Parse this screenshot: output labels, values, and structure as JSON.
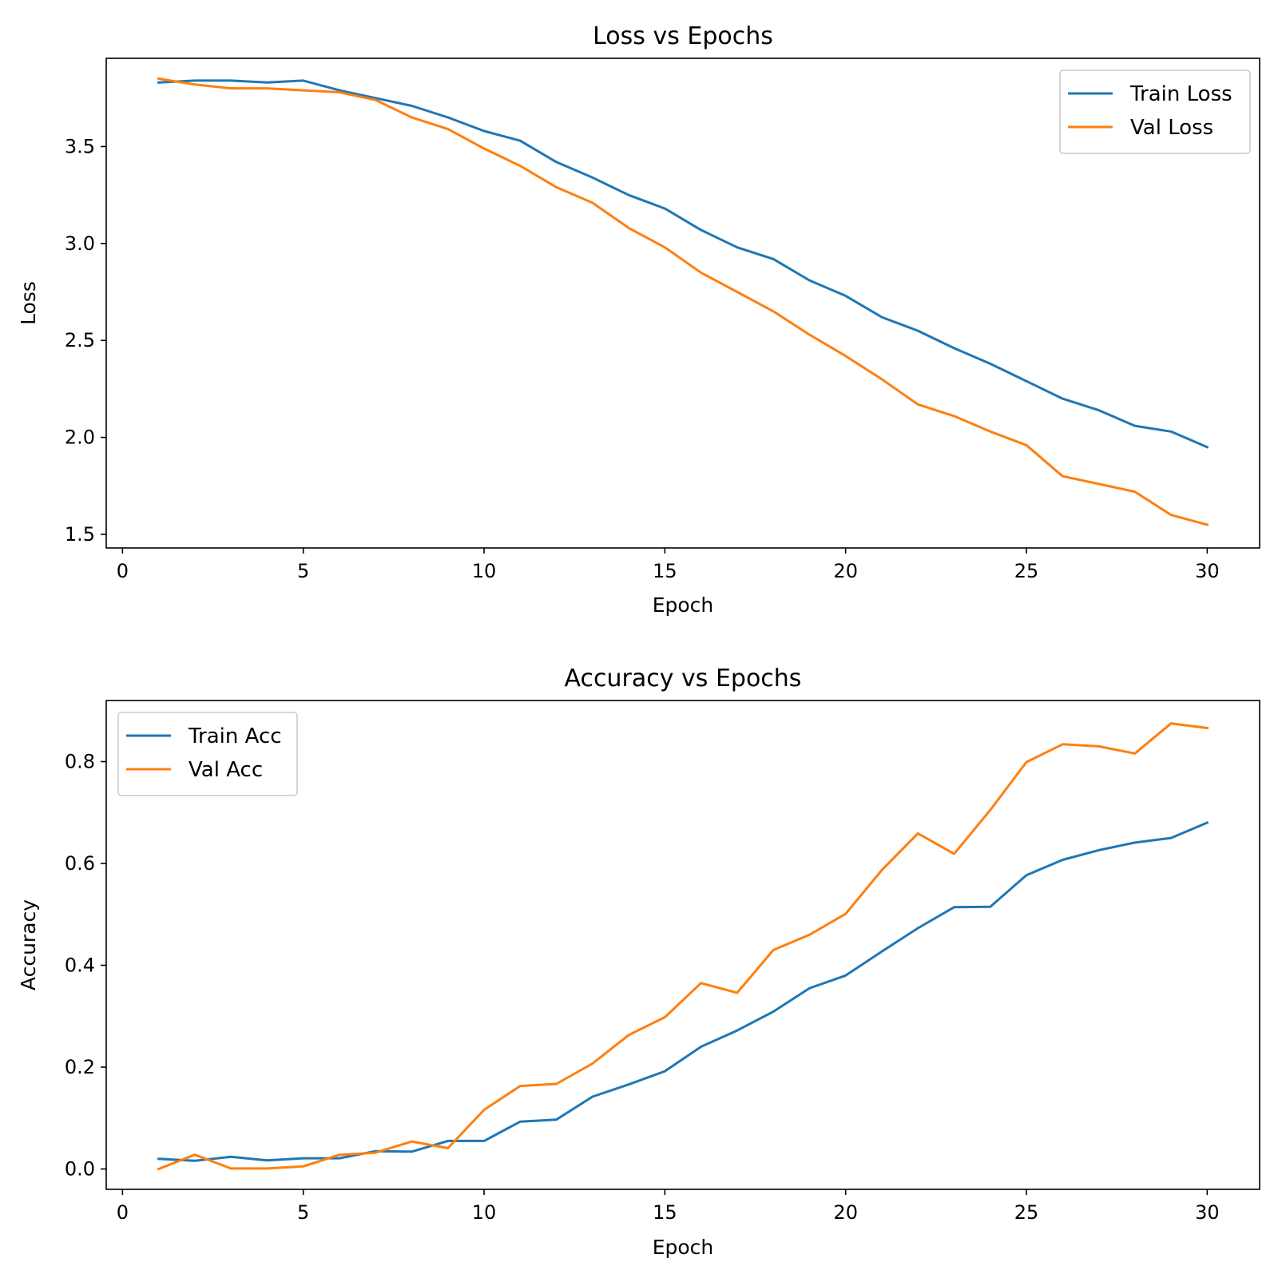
{
  "chart_data": [
    {
      "type": "line",
      "title": "Loss vs Epochs",
      "xlabel": "Epoch",
      "ylabel": "Loss",
      "xlim": [
        -0.45,
        31.45
      ],
      "ylim": [
        1.43,
        3.955
      ],
      "xticks": [
        0,
        5,
        10,
        15,
        20,
        25,
        30
      ],
      "xtick_labels": [
        "0",
        "5",
        "10",
        "15",
        "20",
        "25",
        "30"
      ],
      "yticks": [
        1.5,
        2.0,
        2.5,
        3.0,
        3.5
      ],
      "ytick_labels": [
        "1.5",
        "2.0",
        "2.5",
        "3.0",
        "3.5"
      ],
      "grid": false,
      "legend_position": "upper right",
      "x": [
        1,
        2,
        3,
        4,
        5,
        6,
        7,
        8,
        9,
        10,
        11,
        12,
        13,
        14,
        15,
        16,
        17,
        18,
        19,
        20,
        21,
        22,
        23,
        24,
        25,
        26,
        27,
        28,
        29,
        30
      ],
      "series": [
        {
          "name": "Train Loss",
          "color": "#1f77b4",
          "values": [
            3.83,
            3.84,
            3.84,
            3.83,
            3.84,
            3.79,
            3.75,
            3.71,
            3.65,
            3.58,
            3.53,
            3.42,
            3.34,
            3.25,
            3.18,
            3.07,
            2.98,
            2.92,
            2.81,
            2.73,
            2.62,
            2.55,
            2.46,
            2.38,
            2.29,
            2.2,
            2.14,
            2.06,
            2.03,
            1.95
          ]
        },
        {
          "name": "Val Loss",
          "color": "#ff7f0e",
          "values": [
            3.85,
            3.82,
            3.8,
            3.8,
            3.79,
            3.78,
            3.74,
            3.65,
            3.59,
            3.49,
            3.4,
            3.29,
            3.21,
            3.08,
            2.98,
            2.85,
            2.75,
            2.65,
            2.53,
            2.42,
            2.3,
            2.17,
            2.11,
            2.03,
            1.96,
            1.8,
            1.76,
            1.72,
            1.6,
            1.55
          ]
        }
      ]
    },
    {
      "type": "line",
      "title": "Accuracy vs Epochs",
      "xlabel": "Epoch",
      "ylabel": "Accuracy",
      "xlim": [
        -0.45,
        31.45
      ],
      "ylim": [
        -0.04,
        0.92
      ],
      "xticks": [
        0,
        5,
        10,
        15,
        20,
        25,
        30
      ],
      "xtick_labels": [
        "0",
        "5",
        "10",
        "15",
        "20",
        "25",
        "30"
      ],
      "yticks": [
        0.0,
        0.2,
        0.4,
        0.6,
        0.8
      ],
      "ytick_labels": [
        "0.0",
        "0.2",
        "0.4",
        "0.6",
        "0.8"
      ],
      "grid": false,
      "legend_position": "upper left",
      "x": [
        1,
        2,
        3,
        4,
        5,
        6,
        7,
        8,
        9,
        10,
        11,
        12,
        13,
        14,
        15,
        16,
        17,
        18,
        19,
        20,
        21,
        22,
        23,
        24,
        25,
        26,
        27,
        28,
        29,
        30
      ],
      "series": [
        {
          "name": "Train Acc",
          "color": "#1f77b4",
          "values": [
            0.02,
            0.016,
            0.024,
            0.017,
            0.021,
            0.021,
            0.035,
            0.034,
            0.055,
            0.055,
            0.093,
            0.097,
            0.142,
            0.166,
            0.192,
            0.24,
            0.272,
            0.309,
            0.355,
            0.38,
            0.427,
            0.473,
            0.514,
            0.515,
            0.577,
            0.607,
            0.626,
            0.641,
            0.65,
            0.68
          ]
        },
        {
          "name": "Val Acc",
          "color": "#ff7f0e",
          "values": [
            0.0,
            0.028,
            0.001,
            0.001,
            0.005,
            0.028,
            0.032,
            0.054,
            0.041,
            0.116,
            0.163,
            0.167,
            0.207,
            0.263,
            0.298,
            0.365,
            0.346,
            0.43,
            0.46,
            0.501,
            0.587,
            0.659,
            0.619,
            0.705,
            0.799,
            0.834,
            0.83,
            0.816,
            0.875,
            0.866
          ]
        }
      ]
    }
  ]
}
